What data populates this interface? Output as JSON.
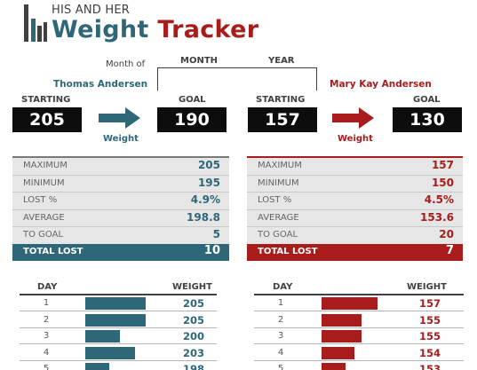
{
  "header": {
    "subtitle": "HIS AND HER",
    "title_part1": "Weight",
    "title_part2": "Tracker"
  },
  "period": {
    "month_of_label": "Month of",
    "month_label": "MONTH",
    "year_label": "YEAR"
  },
  "colors": {
    "his": "#2e6878",
    "her": "#a81c1c",
    "dark": "#404040"
  },
  "his": {
    "name": "Thomas Andersen",
    "starting_label": "STARTING",
    "starting": "205",
    "goal_label": "GOAL",
    "goal": "190",
    "weight_label": "Weight",
    "stats": [
      {
        "label": "MAXIMUM",
        "value": "205"
      },
      {
        "label": "MINIMUM",
        "value": "195"
      },
      {
        "label": "LOST %",
        "value": "4.9%"
      },
      {
        "label": "AVERAGE",
        "value": "198.8"
      },
      {
        "label": "TO GOAL",
        "value": "5"
      }
    ],
    "total_label": "TOTAL LOST",
    "total": "10",
    "log_day_header": "DAY",
    "log_weight_header": "WEIGHT",
    "log": [
      {
        "day": "1",
        "weight": "205",
        "level": 1.0
      },
      {
        "day": "2",
        "weight": "205",
        "level": 1.0
      },
      {
        "day": "3",
        "weight": "200",
        "level": 0.57
      },
      {
        "day": "4",
        "weight": "203",
        "level": 0.83
      },
      {
        "day": "5",
        "weight": "198",
        "level": 0.4
      }
    ]
  },
  "her": {
    "name": "Mary Kay Andersen",
    "starting_label": "STARTING",
    "starting": "157",
    "goal_label": "GOAL",
    "goal": "130",
    "weight_label": "Weight",
    "stats": [
      {
        "label": "MAXIMUM",
        "value": "157"
      },
      {
        "label": "MINIMUM",
        "value": "150"
      },
      {
        "label": "LOST %",
        "value": "4.5%"
      },
      {
        "label": "AVERAGE",
        "value": "153.6"
      },
      {
        "label": "TO GOAL",
        "value": "20"
      }
    ],
    "total_label": "TOTAL LOST",
    "total": "7",
    "log_day_header": "DAY",
    "log_weight_header": "WEIGHT",
    "log": [
      {
        "day": "1",
        "weight": "157",
        "level": 1.0
      },
      {
        "day": "2",
        "weight": "155",
        "level": 0.72
      },
      {
        "day": "3",
        "weight": "155",
        "level": 0.72
      },
      {
        "day": "4",
        "weight": "154",
        "level": 0.58
      },
      {
        "day": "5",
        "weight": "153",
        "level": 0.43
      }
    ]
  }
}
